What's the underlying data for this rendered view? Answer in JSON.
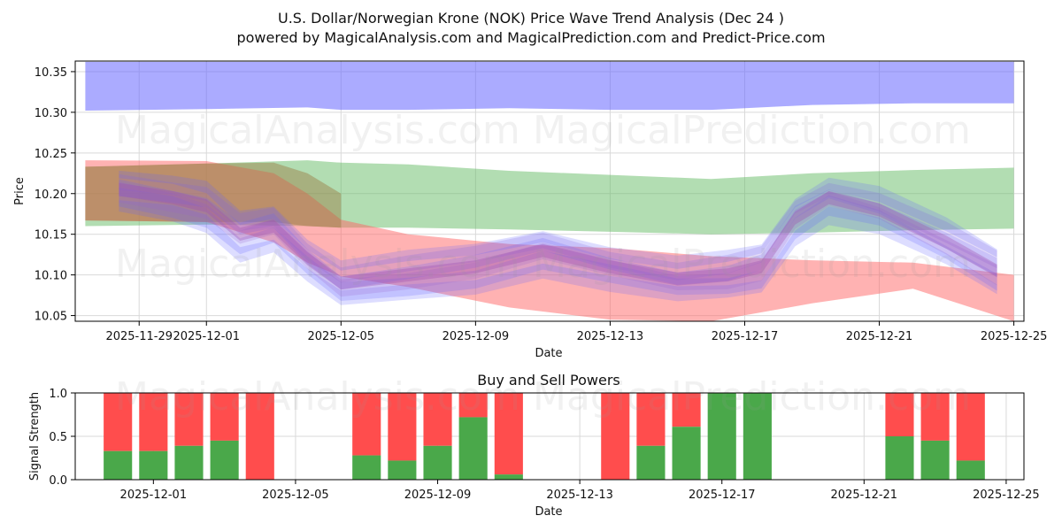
{
  "title_line1": "U.S. Dollar/Norwegian Krone (NOK) Price Wave Trend Analysis (Dec 24 )",
  "title_line2": "powered by MagicalAnalysis.com and MagicalPrediction.com and Predict-Price.com",
  "watermarks": {
    "top_left": "MagicalAnalysis.com",
    "top_right": "MagicalPrediction.com",
    "mid": "MagicalAnalysis.com",
    "mid_right": "MagicalPrediction.com",
    "bottom": "MagicalAnalysis.com",
    "bottom_right": "MagicalPrediction.com"
  },
  "colors": {
    "blue": "#6666ff",
    "green": "#66bb66",
    "red": "#ff6666",
    "buy": "#4aa84a",
    "sell": "#ff4d4d",
    "brown": "#9a7a40"
  },
  "chart_data": [
    {
      "type": "area",
      "title": "",
      "xlabel": "Date",
      "ylabel": "Price",
      "x_tick_labels": [
        "2025-11-29",
        "2025-12-01",
        "2025-12-05",
        "2025-12-09",
        "2025-12-13",
        "2025-12-17",
        "2025-12-21",
        "2025-12-25"
      ],
      "y_tick_labels": [
        "10.05",
        "10.10",
        "10.15",
        "10.20",
        "10.25",
        "10.30",
        "10.35"
      ],
      "ylim": [
        10.043,
        10.363
      ],
      "xlim_days": [
        -3.9,
        24.3
      ],
      "grid": true,
      "series": [
        {
          "name": "upper-blue-band",
          "color": "blue",
          "x": [
            -3.6,
            0,
            3,
            4,
            6,
            9,
            12,
            15,
            18,
            21,
            24
          ],
          "upper": [
            10.362,
            10.362,
            10.362,
            10.362,
            10.362,
            10.362,
            10.362,
            10.362,
            10.362,
            10.362,
            10.362
          ],
          "lower": [
            10.302,
            10.304,
            10.306,
            10.303,
            10.303,
            10.305,
            10.303,
            10.303,
            10.309,
            10.311,
            10.311
          ]
        },
        {
          "name": "green-band",
          "color": "green",
          "x": [
            -3.6,
            0,
            3,
            4,
            6,
            9,
            12,
            15,
            18,
            21,
            24
          ],
          "upper": [
            10.233,
            10.237,
            10.241,
            10.238,
            10.236,
            10.228,
            10.223,
            10.218,
            10.225,
            10.229,
            10.232
          ],
          "lower": [
            10.16,
            10.162,
            10.16,
            10.158,
            10.158,
            10.156,
            10.153,
            10.15,
            10.152,
            10.155,
            10.157
          ]
        },
        {
          "name": "red-band",
          "color": "red",
          "x": [
            -3.6,
            0,
            2,
            3,
            4,
            6,
            9,
            12,
            15,
            18,
            21,
            24
          ],
          "upper": [
            10.241,
            10.24,
            10.225,
            10.2,
            10.168,
            10.15,
            10.138,
            10.133,
            10.123,
            10.118,
            10.115,
            10.1
          ],
          "lower": [
            10.167,
            10.165,
            10.14,
            10.115,
            10.098,
            10.085,
            10.06,
            10.045,
            10.043,
            10.065,
            10.083,
            10.043
          ]
        },
        {
          "name": "purple-wave-cluster",
          "color": "blue",
          "x": [
            -2.6,
            -1,
            0,
            1,
            2,
            3,
            4,
            6,
            8,
            10,
            12,
            14,
            15.5,
            16.5,
            17.5,
            18.5,
            20,
            22,
            23.5
          ],
          "center": [
            10.205,
            10.195,
            10.185,
            10.15,
            10.16,
            10.12,
            10.09,
            10.1,
            10.11,
            10.13,
            10.11,
            10.095,
            10.1,
            10.11,
            10.17,
            10.195,
            10.18,
            10.14,
            10.105
          ]
        }
      ]
    },
    {
      "type": "bar",
      "title": "Buy and Sell Powers",
      "xlabel": "Date",
      "ylabel": "Signal Strength",
      "x_tick_labels": [
        "2025-12-01",
        "2025-12-05",
        "2025-12-09",
        "2025-12-13",
        "2025-12-17",
        "2025-12-21",
        "2025-12-25"
      ],
      "y_tick_labels": [
        "0.0",
        "0.5",
        "1.0"
      ],
      "ylim": [
        0,
        1
      ],
      "xlim_days": [
        -2.2,
        24.5
      ],
      "grid": true,
      "series": [
        {
          "name": "Buy",
          "color": "buy"
        },
        {
          "name": "Sell",
          "color": "sell"
        }
      ],
      "day_offsets": [
        -1,
        0,
        1,
        2,
        3,
        6,
        7,
        8,
        9,
        10,
        13,
        14,
        15,
        16,
        17,
        21,
        22,
        23
      ],
      "buy_values": [
        0.33,
        0.33,
        0.39,
        0.45,
        0.0,
        0.28,
        0.22,
        0.39,
        0.72,
        0.06,
        0.0,
        0.39,
        0.61,
        1.0,
        1.0,
        0.5,
        0.45,
        0.22
      ]
    }
  ]
}
